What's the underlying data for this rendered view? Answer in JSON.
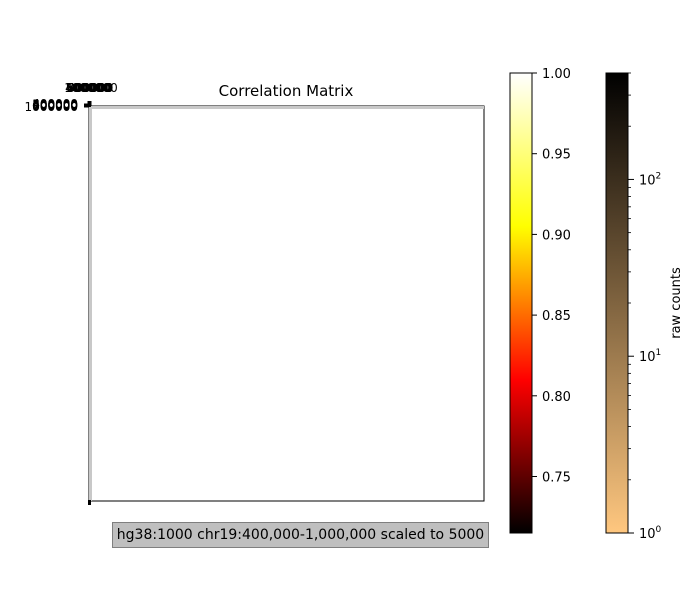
{
  "chart_data": {
    "type": "heatmap",
    "title": "Correlation Matrix",
    "matrix_note": "",
    "top_axis": {
      "tick_labels": [
        "400000",
        "500000",
        "600000",
        "700000",
        "800000",
        "900000",
        "1000000"
      ],
      "range": [
        400000,
        1000000
      ]
    },
    "left_axis": {
      "tick_labels": [
        "400000",
        "500000",
        "600000",
        "700000",
        "800000",
        "900000",
        "1000000"
      ],
      "range": [
        400000,
        1000000
      ]
    },
    "correlation_colorbar": {
      "colormap": "hot",
      "range": [
        0.715,
        1.0
      ],
      "ticks": [
        0.75,
        0.8,
        0.85,
        0.9,
        0.95,
        1.0
      ],
      "tick_labels": [
        "0.75",
        "0.80",
        "0.85",
        "0.90",
        "0.95",
        "1.00"
      ],
      "label": ""
    },
    "counts_colorbar": {
      "colormap": "copper_r",
      "scale": "log",
      "range": [
        1,
        400
      ],
      "ticks": [
        1,
        10,
        100
      ],
      "tick_label_bases": [
        "10",
        "10",
        "10"
      ],
      "tick_label_exponents": [
        "0",
        "1",
        "2"
      ],
      "label": "raw counts"
    },
    "caption": "hg38:1000 chr19:400,000-1,000,000 scaled to 5000"
  },
  "colors": {
    "hot": [
      "#000000",
      "#ff0000",
      "#ffff00",
      "#ffffff"
    ],
    "copper_r": [
      "#ffc77f",
      "#000000"
    ],
    "caption_bg": "#bfbfbf"
  }
}
